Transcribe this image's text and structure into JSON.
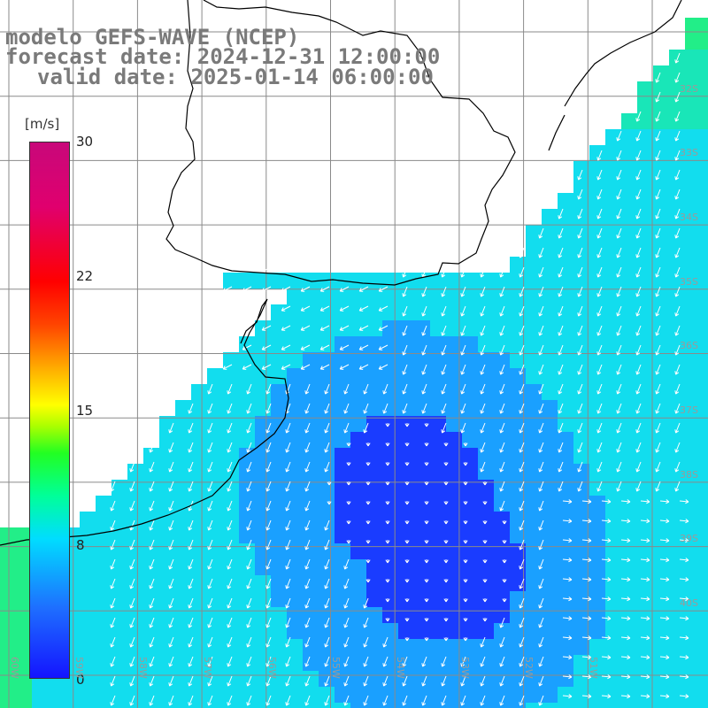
{
  "title": {
    "line1": "modelo GEFS-WAVE (NCEP)",
    "line2": "forecast date: 2024-12-31 12:00:00",
    "line3": "valid date: 2025-01-14 06:00:00"
  },
  "colorbar": {
    "unit": "[m/s]",
    "ticks": [
      "30",
      "22",
      "15",
      "8",
      "0"
    ],
    "range": [
      0,
      30
    ]
  },
  "lat_labels": [
    "32S",
    "33S",
    "34S",
    "35S",
    "36S",
    "37S",
    "38S",
    "39S",
    "40S"
  ],
  "lon_labels": [
    "60W",
    "59W",
    "58W",
    "57W",
    "56W",
    "55W",
    "54W",
    "53W",
    "52W",
    "51W"
  ],
  "colors": {
    "ocean_light": "#12ddee",
    "ocean_mid": "#1aa0ff",
    "ocean_dark": "#1a3cff",
    "land": "#ffffff",
    "grid": "#8a8a8a",
    "coast": "#000000",
    "arrow": "#ffffff"
  }
}
